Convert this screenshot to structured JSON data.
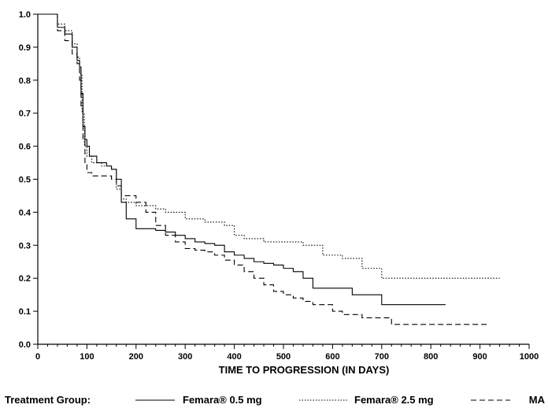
{
  "chart_data": {
    "type": "line",
    "title": "",
    "xlabel": "TIME TO PROGRESSION (IN DAYS)",
    "ylabel": "",
    "xlim": [
      0,
      1000
    ],
    "ylim": [
      0.0,
      1.0
    ],
    "x_ticks": [
      0,
      100,
      200,
      300,
      400,
      500,
      600,
      700,
      800,
      900,
      1000
    ],
    "y_ticks": [
      0.0,
      0.1,
      0.2,
      0.3,
      0.4,
      0.5,
      0.6,
      0.7,
      0.8,
      0.9,
      1.0
    ],
    "x_tick_labels": [
      "0",
      "100",
      "200",
      "300",
      "400",
      "500",
      "600",
      "700",
      "800",
      "900",
      "1000"
    ],
    "y_tick_labels": [
      "0.0",
      "0.1",
      "0.2",
      "0.3",
      "0.4",
      "0.5",
      "0.6",
      "0.7",
      "0.8",
      "0.9",
      "1.0"
    ],
    "grid": false,
    "legend": {
      "position": "bottom",
      "title": "Treatment Group:",
      "items": [
        "Femara® 0.5 mg",
        "Femara® 2.5 mg",
        "MA"
      ]
    },
    "series": [
      {
        "name": "Femara® 0.5 mg",
        "style": "solid",
        "x": [
          0,
          25,
          40,
          55,
          70,
          80,
          85,
          88,
          92,
          96,
          100,
          105,
          120,
          140,
          150,
          160,
          170,
          180,
          200,
          220,
          240,
          260,
          280,
          300,
          320,
          340,
          360,
          380,
          400,
          420,
          440,
          460,
          480,
          500,
          520,
          540,
          560,
          600,
          640,
          680,
          700,
          720,
          760,
          800,
          830
        ],
        "y": [
          1.0,
          1.0,
          0.96,
          0.94,
          0.9,
          0.86,
          0.84,
          0.76,
          0.66,
          0.62,
          0.6,
          0.57,
          0.55,
          0.54,
          0.53,
          0.5,
          0.43,
          0.38,
          0.35,
          0.35,
          0.345,
          0.34,
          0.33,
          0.32,
          0.31,
          0.305,
          0.3,
          0.28,
          0.27,
          0.26,
          0.25,
          0.245,
          0.24,
          0.23,
          0.22,
          0.2,
          0.17,
          0.17,
          0.15,
          0.15,
          0.12,
          0.12,
          0.12,
          0.12,
          0.12
        ]
      },
      {
        "name": "Femara® 2.5 mg",
        "style": "dotted",
        "x": [
          0,
          25,
          40,
          55,
          70,
          80,
          85,
          90,
          95,
          100,
          110,
          130,
          150,
          160,
          170,
          180,
          200,
          240,
          260,
          300,
          340,
          380,
          400,
          420,
          460,
          500,
          540,
          580,
          620,
          660,
          700,
          760,
          800,
          860,
          940
        ],
        "y": [
          1.0,
          1.0,
          0.97,
          0.95,
          0.91,
          0.87,
          0.82,
          0.7,
          0.6,
          0.57,
          0.55,
          0.54,
          0.53,
          0.47,
          0.44,
          0.43,
          0.42,
          0.41,
          0.4,
          0.38,
          0.37,
          0.36,
          0.33,
          0.32,
          0.31,
          0.31,
          0.3,
          0.27,
          0.26,
          0.23,
          0.2,
          0.2,
          0.2,
          0.2,
          0.2
        ]
      },
      {
        "name": "MA",
        "style": "dashed",
        "x": [
          0,
          25,
          40,
          55,
          70,
          80,
          85,
          88,
          92,
          96,
          100,
          110,
          130,
          150,
          160,
          170,
          200,
          220,
          240,
          260,
          280,
          300,
          320,
          340,
          360,
          380,
          400,
          420,
          440,
          460,
          480,
          500,
          520,
          540,
          560,
          600,
          620,
          660,
          700,
          720,
          760,
          800,
          850,
          920
        ],
        "y": [
          1.0,
          1.0,
          0.95,
          0.92,
          0.88,
          0.85,
          0.8,
          0.72,
          0.62,
          0.55,
          0.52,
          0.51,
          0.51,
          0.5,
          0.48,
          0.45,
          0.43,
          0.4,
          0.36,
          0.33,
          0.31,
          0.29,
          0.285,
          0.28,
          0.27,
          0.255,
          0.24,
          0.22,
          0.2,
          0.18,
          0.16,
          0.15,
          0.14,
          0.13,
          0.12,
          0.1,
          0.09,
          0.08,
          0.08,
          0.06,
          0.06,
          0.06,
          0.06,
          0.06
        ]
      }
    ]
  }
}
